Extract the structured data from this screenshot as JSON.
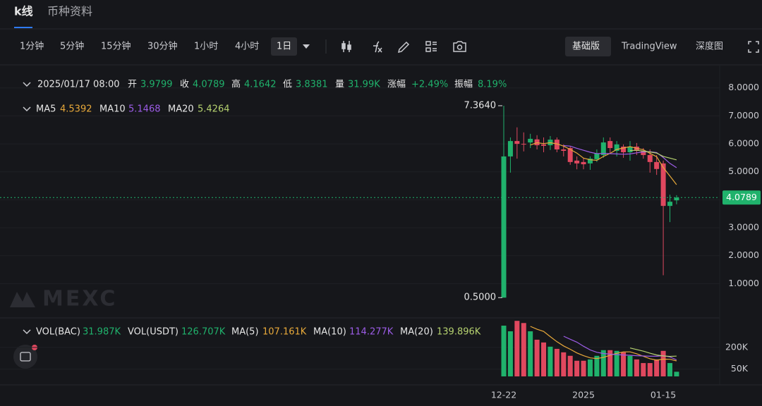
{
  "chart_data": {
    "type": "candlestick",
    "tabs": [
      "k线",
      "币种资料"
    ],
    "intervals": [
      "1分钟",
      "5分钟",
      "15分钟",
      "30分钟",
      "1小时",
      "4小时",
      "1日"
    ],
    "views": [
      "基础版",
      "TradingView",
      "深度图"
    ],
    "header": {
      "datetime": "2025/01/17 08:00",
      "open_label": "开",
      "close_label": "收",
      "high_label": "高",
      "low_label": "低",
      "volume_label": "量",
      "volume": "31.99K",
      "change_label": "涨幅",
      "change": "+2.49%",
      "amplitude_label": "振幅",
      "amplitude": "8.19%"
    },
    "categories": [
      "12-22",
      null,
      null,
      null,
      null,
      null,
      null,
      null,
      null,
      null,
      null,
      null,
      "2025",
      null,
      null,
      null,
      null,
      null,
      null,
      null,
      null,
      null,
      null,
      null,
      "01-15",
      null,
      null
    ],
    "open": [
      0.5,
      5.55,
      6.1,
      6.0,
      6.05,
      6.16,
      5.98,
      5.95,
      6.15,
      5.8,
      5.85,
      5.4,
      5.35,
      5.3,
      5.45,
      5.6,
      6.1,
      5.75,
      5.9,
      5.7,
      5.9,
      5.75,
      5.6,
      5.35,
      5.3,
      3.78,
      3.9799
    ],
    "high": [
      7.364,
      6.23,
      6.59,
      6.41,
      6.36,
      6.31,
      6.23,
      6.28,
      6.23,
      5.98,
      5.9,
      5.55,
      5.5,
      5.55,
      5.8,
      6.23,
      6.23,
      6.1,
      5.98,
      6.1,
      6.03,
      5.85,
      5.8,
      5.6,
      5.4,
      4.18,
      4.1642
    ],
    "low": [
      0.5,
      4.97,
      5.47,
      5.73,
      5.85,
      5.8,
      5.7,
      5.78,
      5.7,
      5.55,
      5.25,
      5.09,
      5.09,
      5.07,
      5.35,
      5.5,
      5.65,
      5.55,
      5.5,
      5.4,
      5.6,
      5.47,
      4.97,
      4.89,
      1.3,
      3.2,
      3.8381
    ],
    "close": [
      5.55,
      6.1,
      6.0,
      5.98,
      6.18,
      5.95,
      5.93,
      6.15,
      5.8,
      5.75,
      5.35,
      5.3,
      5.27,
      5.47,
      5.65,
      6.05,
      5.85,
      5.98,
      5.7,
      5.9,
      5.75,
      5.6,
      5.35,
      5.1,
      3.78,
      3.93,
      4.0789
    ],
    "volume": [
      350000,
      311000,
      383000,
      368000,
      311000,
      253000,
      234000,
      205000,
      190000,
      166000,
      142000,
      108000,
      108000,
      117000,
      142000,
      181000,
      181000,
      176000,
      166000,
      142000,
      117000,
      92000,
      92000,
      117000,
      176000,
      92000,
      31987
    ],
    "up_color": "#20b26c",
    "down_color": "#e0485f",
    "ma": [
      {
        "name": "MA5",
        "color": "#e8a93a",
        "values": [
          null,
          null,
          null,
          null,
          5.96,
          6.04,
          6.01,
          6.04,
          6.0,
          5.92,
          5.8,
          5.67,
          5.49,
          5.43,
          5.41,
          5.55,
          5.66,
          5.8,
          5.85,
          5.9,
          5.84,
          5.79,
          5.66,
          5.54,
          5.15,
          4.85,
          4.5392
        ]
      },
      {
        "name": "MA10",
        "color": "#9c5ce6",
        "values": [
          null,
          null,
          null,
          null,
          null,
          null,
          null,
          null,
          null,
          5.94,
          5.92,
          5.84,
          5.77,
          5.7,
          5.65,
          5.66,
          5.65,
          5.64,
          5.63,
          5.64,
          5.68,
          5.71,
          5.72,
          5.69,
          5.51,
          5.3,
          5.1468
        ]
      },
      {
        "name": "MA20",
        "color": "#b5d16f",
        "values": [
          null,
          null,
          null,
          null,
          null,
          null,
          null,
          null,
          null,
          null,
          null,
          null,
          null,
          null,
          null,
          null,
          null,
          null,
          null,
          5.76,
          5.77,
          5.74,
          5.71,
          5.67,
          5.55,
          5.49,
          5.4264
        ]
      }
    ],
    "vol_legend": [
      {
        "name": "VOL(BAC)",
        "value_label": "31.987K"
      },
      {
        "name": "VOL(USDT)",
        "value_label": "126.707K"
      }
    ],
    "vol_ma": [
      {
        "name": "MA(5)",
        "color": "#e8a93a",
        "value_label": "107.161K",
        "values": [
          null,
          null,
          null,
          null,
          345000,
          325000,
          310000,
          274000,
          239000,
          210000,
          187000,
          162000,
          143000,
          128000,
          123000,
          131000,
          146000,
          159000,
          169000,
          169000,
          156000,
          139000,
          122000,
          112000,
          119000,
          118000,
          107161
        ]
      },
      {
        "name": "MA(10)",
        "color": "#9c5ce6",
        "value_label": "114.277K",
        "values": [
          null,
          null,
          null,
          null,
          null,
          null,
          null,
          null,
          null,
          277000,
          256000,
          236000,
          208000,
          183000,
          166000,
          158000,
          153000,
          150000,
          148000,
          146000,
          143000,
          141000,
          139000,
          139000,
          143000,
          134000,
          114277
        ]
      },
      {
        "name": "MA(20)",
        "color": "#b5d16f",
        "value_label": "139.896K",
        "values": [
          null,
          null,
          null,
          null,
          null,
          null,
          null,
          null,
          null,
          null,
          null,
          null,
          null,
          null,
          null,
          null,
          null,
          null,
          null,
          196000,
          185000,
          174000,
          160000,
          148000,
          141000,
          138000,
          139896
        ]
      }
    ],
    "ylim": [
      -0.2,
      8.75
    ],
    "yticks": [
      {
        "value": 8,
        "label": "8.0000"
      },
      {
        "value": 7,
        "label": "7.0000"
      },
      {
        "value": 6,
        "label": "6.0000"
      },
      {
        "value": 5,
        "label": "5.0000"
      },
      {
        "value": 4,
        "label": "4.0000"
      },
      {
        "value": 3,
        "label": "3.0000"
      },
      {
        "value": 2,
        "label": "2.0000"
      },
      {
        "value": 1,
        "label": "1.0000"
      }
    ],
    "vol_ylim": [
      0,
      384000
    ],
    "vol_yticks": [
      {
        "value": 200000,
        "label": "200K"
      },
      {
        "value": 50000,
        "label": "50K"
      }
    ],
    "annotations": [
      {
        "value": 7.364,
        "label": "7.3640"
      },
      {
        "value": 0.5,
        "label": "0.5000"
      }
    ],
    "watermark": "MEXC",
    "grid": true
  }
}
